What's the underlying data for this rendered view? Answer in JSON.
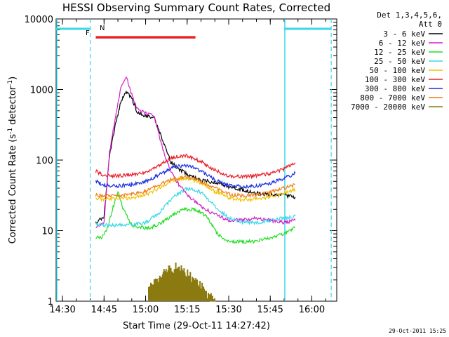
{
  "chart_data": {
    "type": "line",
    "title": "HESSI Observing Summary Count Rates, Corrected",
    "xlabel": "Start Time (29-Oct-11 14:27:42)",
    "ylabel": "Corrected Count Rate (s⁻¹ detector⁻¹)",
    "ylabel_parts": {
      "main": "Corrected Count Rate (s",
      "sup1": "-1",
      "mid": " detector",
      "sup2": "-1",
      "end": ")"
    },
    "yscale": "log",
    "ylim": [
      1,
      10000
    ],
    "xlim": [
      "14:27:42",
      "16:09"
    ],
    "x_ticks": [
      "14:30",
      "14:45",
      "15:00",
      "15:15",
      "15:30",
      "15:45",
      "16:00"
    ],
    "y_ticks": [
      "1",
      "10",
      "100",
      "1000",
      "10000"
    ],
    "legend_header": [
      "Det 1,3,4,5,6,",
      "Att 0"
    ],
    "legend_position": "right",
    "footer_date": "29-Oct-2011 15:25",
    "annotations": [
      {
        "label": "F",
        "color": "#e8202a"
      },
      {
        "label": "N",
        "color": "#39d8e8"
      }
    ],
    "markers": {
      "night_intervals": [
        [
          "14:27:42",
          "14:40"
        ],
        [
          "15:50",
          "16:07"
        ]
      ],
      "flare_flag": {
        "from": "14:42",
        "to": "15:18",
        "value": 5500
      }
    },
    "series": [
      {
        "name": "3 - 6 keV",
        "color": "#000000",
        "x": [
          "14:42",
          "14:45",
          "14:47",
          "14:49",
          "14:51",
          "14:53",
          "14:55",
          "14:57",
          "15:00",
          "15:03",
          "15:06",
          "15:09",
          "15:12",
          "15:16",
          "15:20",
          "15:25",
          "15:30",
          "15:35",
          "15:40",
          "15:45",
          "15:50",
          "15:54"
        ],
        "y": [
          13,
          16,
          120,
          300,
          650,
          950,
          750,
          480,
          420,
          400,
          200,
          95,
          75,
          60,
          52,
          48,
          42,
          38,
          34,
          32,
          32,
          30
        ]
      },
      {
        "name": "6 - 12 keV",
        "color": "#d321cc",
        "x": [
          "14:42",
          "14:45",
          "14:47",
          "14:49",
          "14:51",
          "14:53",
          "14:55",
          "14:57",
          "15:00",
          "15:03",
          "15:06",
          "15:09",
          "15:12",
          "15:16",
          "15:20",
          "15:25",
          "15:30",
          "15:35",
          "15:40",
          "15:45",
          "15:50",
          "15:54"
        ],
        "y": [
          11,
          13,
          130,
          400,
          1000,
          1500,
          850,
          520,
          460,
          430,
          150,
          70,
          45,
          30,
          22,
          17,
          14,
          14,
          15,
          14,
          13,
          14
        ]
      },
      {
        "name": "12 - 25 keV",
        "color": "#22dd22",
        "x": [
          "14:42",
          "14:44",
          "14:46",
          "14:48",
          "14:50",
          "14:52",
          "14:55",
          "14:58",
          "15:02",
          "15:06",
          "15:10",
          "15:14",
          "15:18",
          "15:22",
          "15:26",
          "15:30",
          "15:35",
          "15:40",
          "15:45",
          "15:50",
          "15:54"
        ],
        "y": [
          8,
          8,
          10,
          20,
          35,
          20,
          12,
          11,
          11,
          13,
          17,
          20,
          20,
          16,
          9,
          7,
          7,
          7,
          8,
          9,
          11
        ]
      },
      {
        "name": "25 - 50 keV",
        "color": "#39d8e8",
        "x": [
          "14:42",
          "14:45",
          "14:50",
          "14:55",
          "15:00",
          "15:05",
          "15:10",
          "15:15",
          "15:20",
          "15:25",
          "15:30",
          "15:35",
          "15:40",
          "15:45",
          "15:50",
          "15:54"
        ],
        "y": [
          12,
          12,
          12,
          12,
          13,
          18,
          30,
          40,
          35,
          22,
          15,
          13,
          13,
          14,
          15,
          16
        ]
      },
      {
        "name": "50 - 100 keV",
        "color": "#f2c200",
        "x": [
          "14:42",
          "14:45",
          "14:50",
          "14:55",
          "15:00",
          "15:05",
          "15:10",
          "15:15",
          "15:20",
          "15:25",
          "15:30",
          "15:35",
          "15:40",
          "15:45",
          "15:50",
          "15:54"
        ],
        "y": [
          28,
          28,
          28,
          29,
          32,
          40,
          52,
          55,
          48,
          36,
          29,
          27,
          28,
          30,
          34,
          38
        ]
      },
      {
        "name": "100 - 300 keV",
        "color": "#e8202a",
        "x": [
          "14:42",
          "14:45",
          "14:50",
          "14:55",
          "15:00",
          "15:05",
          "15:10",
          "15:15",
          "15:20",
          "15:25",
          "15:30",
          "15:35",
          "15:40",
          "15:45",
          "15:50",
          "15:54"
        ],
        "y": [
          70,
          60,
          60,
          62,
          68,
          85,
          110,
          115,
          95,
          72,
          60,
          58,
          60,
          65,
          75,
          92
        ]
      },
      {
        "name": "300 - 800 keV",
        "color": "#1a2ee0",
        "x": [
          "14:42",
          "14:45",
          "14:50",
          "14:55",
          "15:00",
          "15:05",
          "15:10",
          "15:15",
          "15:20",
          "15:25",
          "15:30",
          "15:35",
          "15:40",
          "15:45",
          "15:50",
          "15:54"
        ],
        "y": [
          50,
          44,
          43,
          45,
          50,
          62,
          80,
          85,
          70,
          52,
          44,
          42,
          43,
          47,
          55,
          65
        ]
      },
      {
        "name": "800 - 7000 keV",
        "color": "#f07f18",
        "x": [
          "14:42",
          "14:45",
          "14:50",
          "14:55",
          "15:00",
          "15:05",
          "15:10",
          "15:15",
          "15:20",
          "15:25",
          "15:30",
          "15:35",
          "15:40",
          "15:45",
          "15:50",
          "15:54"
        ],
        "y": [
          32,
          31,
          31,
          33,
          36,
          45,
          55,
          58,
          50,
          40,
          33,
          31,
          32,
          35,
          40,
          45
        ]
      },
      {
        "name": "7000 - 20000 keV",
        "color": "#8a7a10",
        "x": [
          "15:01",
          "15:03",
          "15:05",
          "15:07",
          "15:09",
          "15:11",
          "15:13",
          "15:15",
          "15:17",
          "15:19",
          "15:21",
          "15:23",
          "15:25"
        ],
        "y": [
          1.4,
          1.7,
          2.0,
          2.5,
          2.8,
          3.0,
          2.7,
          2.4,
          2.0,
          1.7,
          1.4,
          1.2,
          1.0
        ]
      }
    ]
  }
}
